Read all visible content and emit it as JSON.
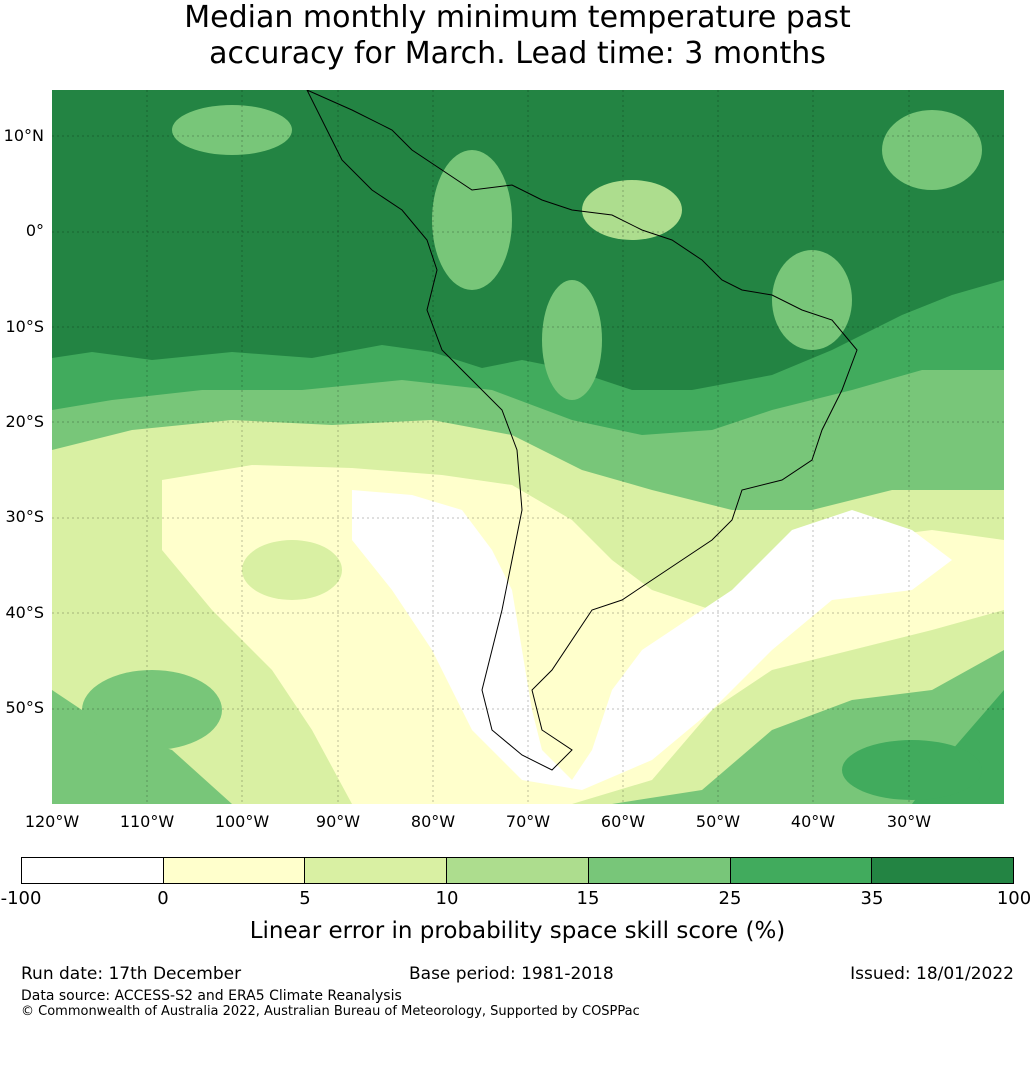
{
  "title": {
    "line1": "Median monthly minimum temperature past",
    "line2": "accuracy for March. Lead time: 3 months"
  },
  "map": {
    "lat_labels": [
      "10°N",
      "0°",
      "10°S",
      "20°S",
      "30°S",
      "40°S",
      "50°S"
    ],
    "lon_labels": [
      "120°W",
      "110°W",
      "100°W",
      "90°W",
      "80°W",
      "70°W",
      "60°W",
      "50°W",
      "40°W",
      "30°W"
    ]
  },
  "colorbar": {
    "ticks": [
      "-100",
      "0",
      "5",
      "10",
      "15",
      "25",
      "35",
      "100"
    ],
    "colors": [
      "#ffffff",
      "#ffffcc",
      "#d9f0a3",
      "#addd8e",
      "#78c679",
      "#41ab5d",
      "#238443"
    ],
    "label": "Linear error in probability space skill score (%)"
  },
  "footer": {
    "run_date": "Run date: 17th December",
    "base_period": "Base period: 1981-2018",
    "issued": "Issued: 18/01/2022",
    "data_source": "Data source: ACCESS-S2 and ERA5 Climate Reanalysis",
    "copyright": "© Commonwealth of Australia 2022, Australian Bureau of Meteorology, Supported by COSPPac"
  }
}
